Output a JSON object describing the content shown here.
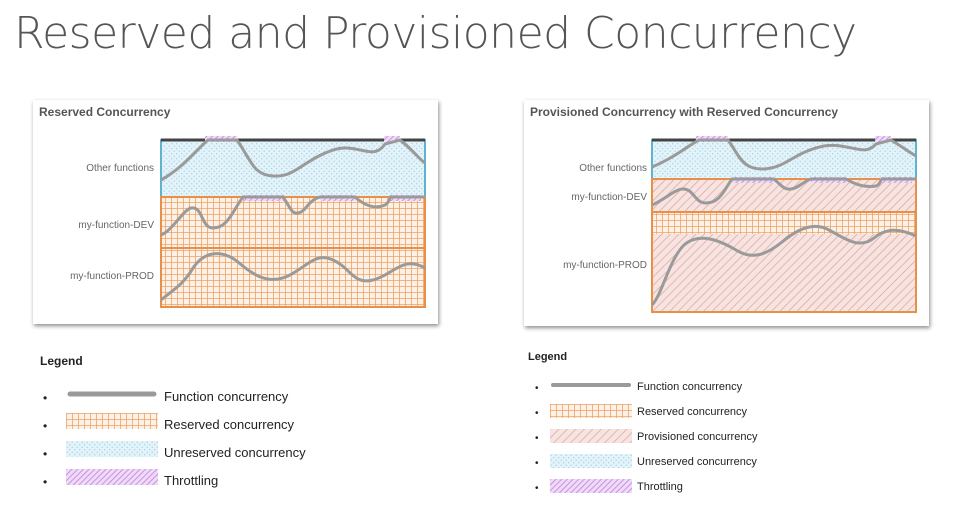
{
  "title": "Reserved and Provisioned Concurrency",
  "left_diagram": {
    "title": "Reserved Concurrency",
    "rows": [
      "Other functions",
      "my-function-DEV",
      "my-function-PROD"
    ]
  },
  "right_diagram": {
    "title": "Provisioned Concurrency with Reserved Concurrency",
    "rows": [
      "Other functions",
      "my-function-DEV",
      "my-function-PROD"
    ]
  },
  "left_legend": {
    "title": "Legend",
    "items": [
      {
        "label": "Function concurrency",
        "pattern": "line"
      },
      {
        "label": "Reserved concurrency",
        "pattern": "reserved"
      },
      {
        "label": "Unreserved concurrency",
        "pattern": "unreserved"
      },
      {
        "label": "Throttling",
        "pattern": "throttling"
      }
    ]
  },
  "right_legend": {
    "title": "Legend",
    "items": [
      {
        "label": "Function concurrency",
        "pattern": "line"
      },
      {
        "label": "Reserved concurrency",
        "pattern": "reserved"
      },
      {
        "label": "Provisioned concurrency",
        "pattern": "provisioned"
      },
      {
        "label": "Unreserved concurrency",
        "pattern": "unreserved"
      },
      {
        "label": "Throttling",
        "pattern": "throttling"
      }
    ]
  },
  "colors": {
    "reserved_border": "#e8904a",
    "unreserved_border": "#5fb3cf",
    "throttling": "#c488e0",
    "function_line": "#9a9a9a",
    "provisioned": "#d79b96"
  }
}
